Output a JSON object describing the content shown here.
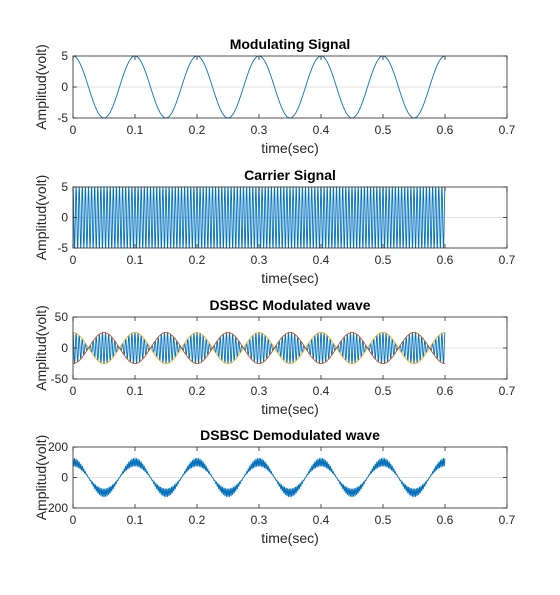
{
  "chart_data": [
    {
      "type": "line",
      "title": "Modulating Signal",
      "xlabel": "time(sec)",
      "ylabel": "Amplitud(volt)",
      "xlim": [
        0,
        0.7
      ],
      "ylim": [
        -5,
        5
      ],
      "xticks": [
        0,
        0.1,
        0.2,
        0.3,
        0.4,
        0.5,
        0.6,
        0.7
      ],
      "xticklabels": [
        "0",
        "0.1",
        "0.2",
        "0.3",
        "0.4",
        "0.5",
        "0.6",
        "0.7"
      ],
      "yticks": [
        -5,
        0,
        5
      ],
      "yticklabels": [
        "-5",
        "0",
        "5"
      ],
      "grid": false,
      "series": [
        {
          "function": "m(t) = 5*cos(2*pi*10*t)",
          "amplitude": 5,
          "frequency_hz": 10,
          "t_range": [
            0,
            0.6
          ],
          "color": "#0072BD"
        }
      ]
    },
    {
      "type": "line",
      "title": "Carrier Signal",
      "xlabel": "time(sec)",
      "ylabel": "Amplitud(volt)",
      "xlim": [
        0,
        0.7
      ],
      "ylim": [
        -5,
        5
      ],
      "xticks": [
        0,
        0.1,
        0.2,
        0.3,
        0.4,
        0.5,
        0.6,
        0.7
      ],
      "xticklabels": [
        "0",
        "0.1",
        "0.2",
        "0.3",
        "0.4",
        "0.5",
        "0.6",
        "0.7"
      ],
      "yticks": [
        -5,
        0,
        5
      ],
      "yticklabels": [
        "-5",
        "0",
        "5"
      ],
      "grid": false,
      "series": [
        {
          "function": "c(t) = 5*cos(2*pi*200*t)",
          "amplitude": 5,
          "frequency_hz": 200,
          "t_range": [
            0,
            0.6
          ],
          "color": "#0072BD"
        }
      ]
    },
    {
      "type": "line",
      "title": "DSBSC Modulated wave",
      "xlabel": "time(sec)",
      "ylabel": "Amplitud(volt)",
      "xlim": [
        0,
        0.7
      ],
      "ylim": [
        -50,
        50
      ],
      "xticks": [
        0,
        0.1,
        0.2,
        0.3,
        0.4,
        0.5,
        0.6,
        0.7
      ],
      "xticklabels": [
        "0",
        "0.1",
        "0.2",
        "0.3",
        "0.4",
        "0.5",
        "0.6",
        "0.7"
      ],
      "yticks": [
        -50,
        0,
        50
      ],
      "yticklabels": [
        "-50",
        "0",
        "50"
      ],
      "grid": false,
      "series": [
        {
          "function": "s(t) = m(t)*c(t)",
          "amplitude": 25,
          "message_hz": 10,
          "carrier_hz": 200,
          "t_range": [
            0,
            0.6
          ],
          "color": "#0072BD"
        },
        {
          "function": "+m(t)*5 envelope",
          "amplitude": 25,
          "frequency_hz": 10,
          "t_range": [
            0,
            0.6
          ],
          "color": "#EDB120"
        },
        {
          "function": "-m(t)*5 envelope",
          "amplitude": -25,
          "frequency_hz": 10,
          "t_range": [
            0,
            0.6
          ],
          "color": "#D95319"
        }
      ]
    },
    {
      "type": "line",
      "title": "DSBSC Demodulated wave",
      "xlabel": "time(sec)",
      "ylabel": "Amplitud(volt)",
      "xlim": [
        0,
        0.7
      ],
      "ylim": [
        -200,
        200
      ],
      "xticks": [
        0,
        0.1,
        0.2,
        0.3,
        0.4,
        0.5,
        0.6,
        0.7
      ],
      "xticklabels": [
        "0",
        "0.1",
        "0.2",
        "0.3",
        "0.4",
        "0.5",
        "0.6",
        "0.7"
      ],
      "yticks": [
        -200,
        0,
        200
      ],
      "yticklabels": [
        "-200",
        "0",
        "200"
      ],
      "grid": false,
      "series": [
        {
          "function": "d(t) = 125*cos(2*pi*10*t)*(0.8 + 0.2*cos(2*pi*400*t))",
          "amplitude": 125,
          "message_hz": 10,
          "ripple_hz": 400,
          "t_range": [
            0,
            0.6
          ],
          "color": "#0072BD"
        }
      ]
    }
  ]
}
